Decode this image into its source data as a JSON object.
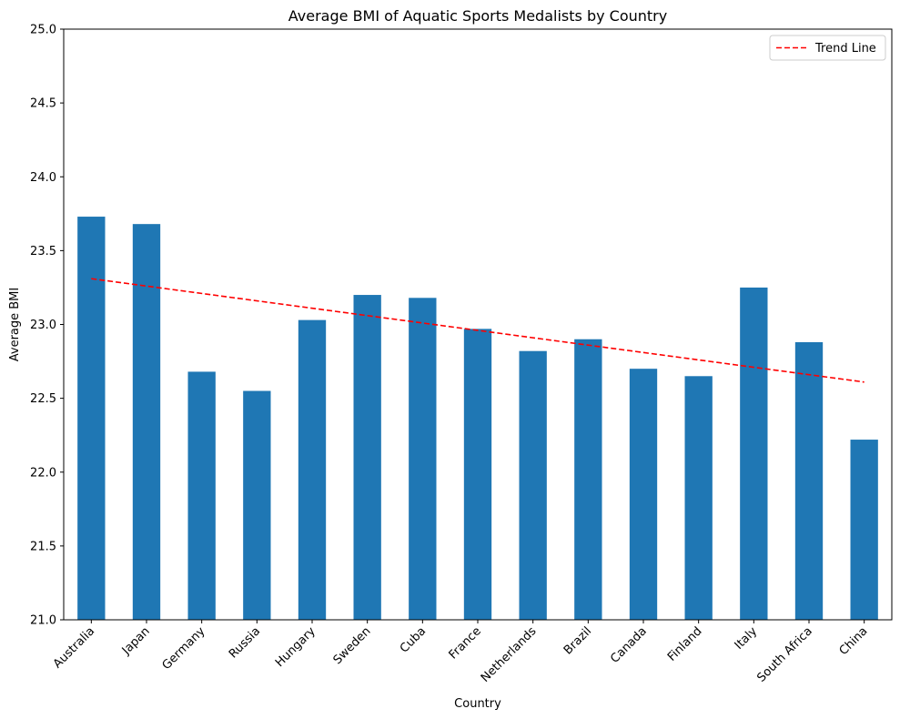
{
  "chart_data": {
    "type": "bar",
    "title": "Average BMI of Aquatic Sports Medalists by Country",
    "xlabel": "Country",
    "ylabel": "Average BMI",
    "categories": [
      "Australia",
      "Japan",
      "Germany",
      "Russia",
      "Hungary",
      "Sweden",
      "Cuba",
      "France",
      "Netherlands",
      "Brazil",
      "Canada",
      "Finland",
      "Italy",
      "South Africa",
      "China"
    ],
    "values": [
      23.73,
      23.68,
      22.68,
      22.55,
      23.03,
      23.2,
      23.18,
      22.97,
      22.82,
      22.9,
      22.7,
      22.65,
      23.25,
      22.88,
      22.22
    ],
    "ylim": [
      21.0,
      25.0
    ],
    "yticks": [
      21.0,
      21.5,
      22.0,
      22.5,
      23.0,
      23.5,
      24.0,
      24.5,
      25.0
    ],
    "ytick_labels": [
      "21.0",
      "21.5",
      "22.0",
      "22.5",
      "23.0",
      "23.5",
      "24.0",
      "24.5",
      "25.0"
    ],
    "bar_color": "#1f77b4",
    "trend_line": {
      "name": "Trend Line",
      "color": "#ff0000",
      "style": "dashed",
      "start": 23.31,
      "end": 22.61
    },
    "legend": {
      "position": "top-right",
      "entries": [
        "Trend Line"
      ]
    },
    "grid": false
  }
}
